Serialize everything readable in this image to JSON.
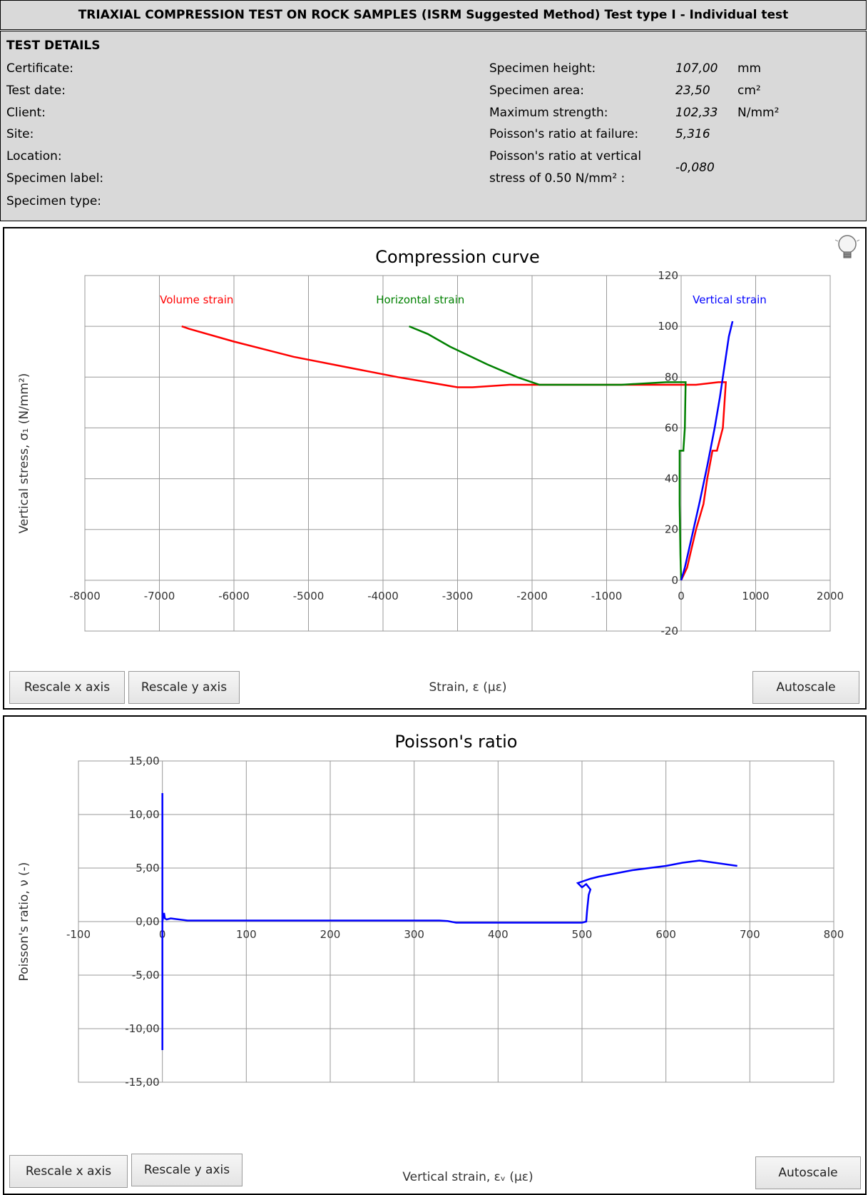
{
  "header": {
    "title": "TRIAXIAL COMPRESSION TEST ON ROCK SAMPLES (ISRM Suggested Method) Test type I - Individual test"
  },
  "details": {
    "heading": "TEST DETAILS",
    "left_labels": [
      "Certificate:",
      "Test date:",
      "Client:",
      "Site:",
      "Location:",
      "Specimen label:",
      "Specimen type:"
    ],
    "specimen_height": {
      "label": "Specimen height:",
      "value": "107,00",
      "unit": "mm"
    },
    "specimen_area": {
      "label": "Specimen area:",
      "value": "23,50",
      "unit": "cm²"
    },
    "max_strength": {
      "label": "Maximum strength:",
      "value": "102,33",
      "unit": "N/mm²"
    },
    "poisson_failure": {
      "label": "Poisson's ratio at failure:",
      "value": "5,316"
    },
    "poisson_vertical": {
      "label_line1": "Poisson's ratio at vertical",
      "label_line2": "stress of 0.50 N/mm² :",
      "value": "-0,080"
    }
  },
  "compression_panel": {
    "buttons": {
      "rescale_x": "Rescale x axis",
      "rescale_y": "Rescale y axis",
      "autoscale": "Autoscale"
    },
    "icon": "lightbulb-icon"
  },
  "poisson_panel": {
    "buttons": {
      "rescale_x": "Rescale x axis",
      "rescale_y": "Rescale y axis",
      "autoscale": "Autoscale"
    }
  },
  "chart_data": [
    {
      "type": "line",
      "title": "Compression curve",
      "xlabel": "Strain, ε (με)",
      "ylabel": "Vertical stress, σ₁ (N/mm²)",
      "xlim": [
        -8000,
        2000
      ],
      "ylim": [
        -20,
        120
      ],
      "x_ticks": [
        "-8000",
        "-7000",
        "-6000",
        "-5000",
        "-4000",
        "-3000",
        "-2000",
        "-1000",
        "0",
        "1000",
        "2000"
      ],
      "y_ticks": [
        "-20",
        "0",
        "20",
        "40",
        "60",
        "80",
        "100",
        "120"
      ],
      "grid": true,
      "series": [
        {
          "name": "Volume strain",
          "color": "#ff0000",
          "x": [
            0,
            80,
            120,
            200,
            300,
            350,
            420,
            480,
            560,
            600,
            500,
            200,
            -800,
            -1800,
            -2300,
            -2800,
            -3000,
            -3400,
            -3800,
            -4500,
            -5200,
            -6000,
            -6600,
            -6700
          ],
          "y": [
            0,
            5,
            10,
            20,
            30,
            40,
            51,
            51,
            60,
            78,
            78,
            77,
            77,
            77,
            77,
            76,
            76,
            78,
            80,
            84,
            88,
            94,
            99,
            100
          ]
        },
        {
          "name": "Horizontal strain",
          "color": "#008000",
          "x": [
            0,
            -10,
            -20,
            -20,
            0,
            30,
            50,
            60,
            -200,
            -800,
            -1500,
            -1900,
            -2200,
            -2600,
            -3100,
            -3400,
            -3650
          ],
          "y": [
            0,
            10,
            30,
            51,
            51,
            51,
            60,
            78,
            78,
            77,
            77,
            77,
            80,
            85,
            92,
            97,
            100
          ]
        },
        {
          "name": "Vertical strain",
          "color": "#0000ff",
          "x": [
            0,
            50,
            150,
            250,
            350,
            450,
            520,
            580,
            640,
            690
          ],
          "y": [
            0,
            5,
            18,
            31,
            45,
            60,
            72,
            84,
            96,
            102
          ]
        }
      ]
    },
    {
      "type": "line",
      "title": "Poisson's ratio",
      "xlabel": "Vertical strain, εᵥ (με)",
      "ylabel": "Poisson's ratio, ν (-)",
      "xlim": [
        -100,
        800
      ],
      "ylim": [
        -15,
        15
      ],
      "x_ticks": [
        "-100",
        "0",
        "100",
        "200",
        "300",
        "400",
        "500",
        "600",
        "700",
        "800"
      ],
      "y_ticks": [
        "15,00",
        "10,00",
        "5,00",
        "0,00",
        "-5,00",
        "-10,00",
        "-15,00"
      ],
      "grid": true,
      "series": [
        {
          "color": "#0000ff",
          "x": [
            0,
            0,
            0,
            0,
            0,
            2,
            3,
            5,
            10,
            30,
            60,
            150,
            250,
            330,
            340,
            350,
            400,
            450,
            500,
            505,
            506,
            508,
            510,
            505,
            500,
            495,
            510,
            520,
            540,
            560,
            580,
            600,
            620,
            640,
            685
          ],
          "y": [
            0,
            12,
            0,
            -12,
            0,
            0.8,
            0.3,
            0.2,
            0.3,
            0.1,
            0.1,
            0.1,
            0.1,
            0.1,
            0.05,
            -0.1,
            -0.1,
            -0.1,
            -0.1,
            0,
            1,
            2.5,
            3,
            3.5,
            3.2,
            3.6,
            4,
            4.2,
            4.5,
            4.8,
            5,
            5.2,
            5.5,
            5.7,
            5.2
          ]
        }
      ]
    }
  ]
}
